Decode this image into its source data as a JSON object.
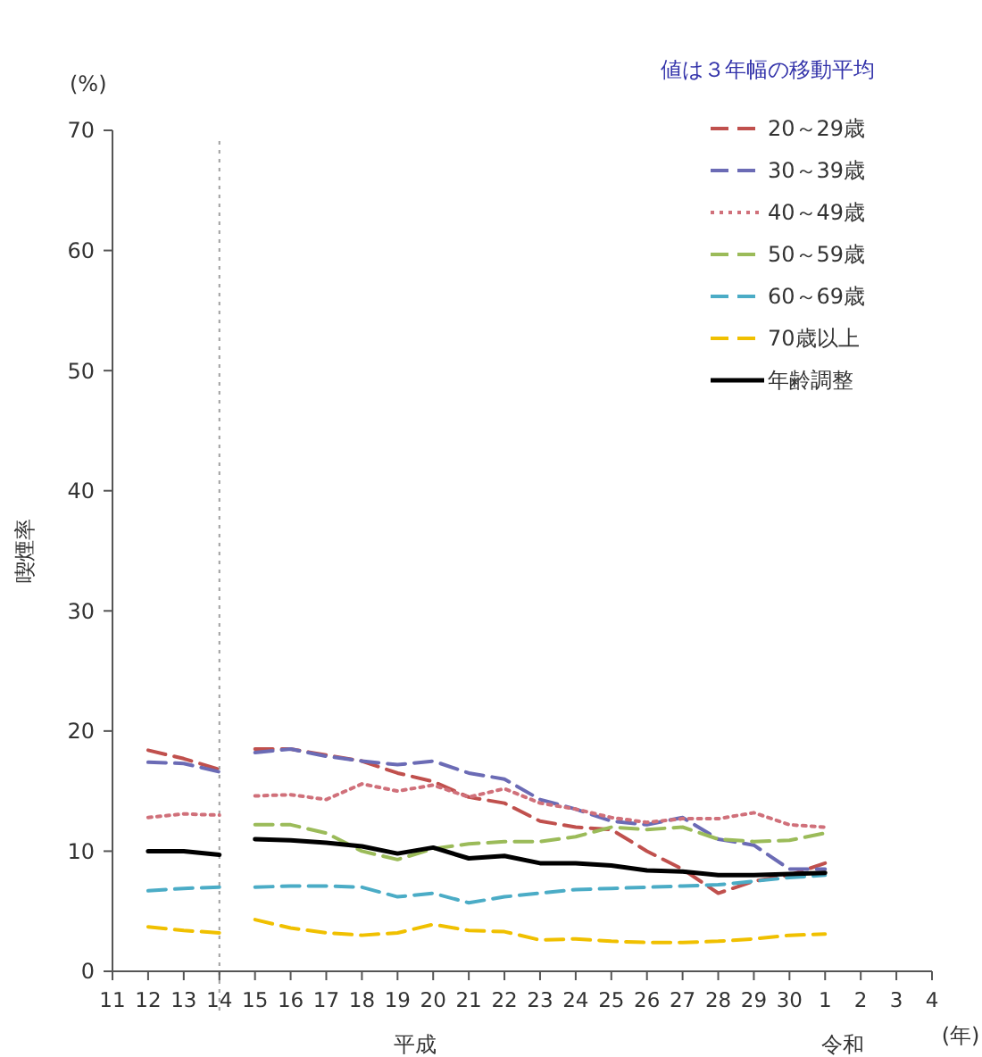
{
  "chart_data": {
    "type": "line",
    "subtitle": "値は３年幅の移動平均",
    "ylabel": "喫煙率",
    "xlabel": "(年)",
    "annotations": [
      "(%)",
      "平成",
      "令和"
    ],
    "categories": [
      "11",
      "12",
      "13",
      "14",
      "15",
      "16",
      "17",
      "18",
      "19",
      "20",
      "21",
      "22",
      "23",
      "24",
      "25",
      "26",
      "27",
      "28",
      "29",
      "30",
      "1",
      "2",
      "3",
      "4"
    ],
    "ylim": [
      0,
      70
    ],
    "yticks": [
      0,
      10,
      20,
      30,
      40,
      50,
      60,
      70
    ],
    "grid": false,
    "legend": "top right",
    "marker": "none",
    "ref_lines": [
      {
        "axis": "x",
        "value": "14",
        "color": "#a0a0a0",
        "line_style": "dotted"
      }
    ],
    "series": [
      {
        "name": "20～29歳",
        "color": "#c0504d",
        "line_style": "dashed",
        "values": [
          null,
          18.4,
          17.7,
          16.8,
          18.5,
          18.5,
          18,
          17.5,
          16.5,
          15.8,
          14.5,
          14,
          12.5,
          12,
          11.8,
          10,
          8.5,
          6.5,
          7.5,
          8,
          9,
          null,
          null,
          null
        ]
      },
      {
        "name": "30～39歳",
        "color": "#6b6bb5",
        "line_style": "dashed",
        "values": [
          null,
          17.4,
          17.3,
          16.6,
          18.2,
          18.5,
          17.9,
          17.5,
          17.2,
          17.5,
          16.5,
          16,
          14.3,
          13.5,
          12.5,
          12.2,
          12.8,
          11,
          10.5,
          8.5,
          8.5,
          null,
          null,
          null
        ]
      },
      {
        "name": "40～49歳",
        "color": "#d0707a",
        "line_style": "dotted",
        "values": [
          null,
          12.8,
          13.1,
          13,
          14.6,
          14.7,
          14.3,
          15.6,
          15,
          15.5,
          14.5,
          15.2,
          14,
          13.5,
          12.8,
          12.4,
          12.7,
          12.7,
          13.2,
          12.2,
          12,
          null,
          null,
          null
        ]
      },
      {
        "name": "50～59歳",
        "color": "#9bbb59",
        "line_style": "dashed",
        "values": [
          null,
          null,
          null,
          null,
          12.2,
          12.2,
          11.5,
          10,
          9.3,
          10.2,
          10.6,
          10.8,
          10.8,
          11.2,
          12,
          11.8,
          12,
          11,
          10.8,
          10.9,
          11.5,
          null,
          null,
          null
        ]
      },
      {
        "name": "60～69歳",
        "color": "#4bacc6",
        "line_style": "dashed",
        "values": [
          null,
          6.7,
          6.9,
          7,
          7,
          7.1,
          7.1,
          7,
          6.2,
          6.5,
          5.7,
          6.2,
          6.5,
          6.8,
          6.9,
          7,
          7.1,
          7.2,
          7.5,
          7.8,
          8,
          null,
          null,
          null
        ]
      },
      {
        "name": "70歳以上",
        "color": "#f0c000",
        "line_style": "dashed",
        "values": [
          null,
          3.7,
          3.4,
          3.2,
          4.3,
          3.6,
          3.2,
          3,
          3.2,
          3.9,
          3.4,
          3.3,
          2.6,
          2.7,
          2.5,
          2.4,
          2.4,
          2.5,
          2.7,
          3,
          3.1,
          null,
          null,
          null
        ]
      },
      {
        "name": "年齢調整",
        "color": "#000000",
        "line_style": "solid",
        "values": [
          null,
          10,
          10,
          9.7,
          11,
          10.9,
          10.7,
          10.4,
          9.8,
          10.3,
          9.4,
          9.6,
          9,
          9,
          8.8,
          8.4,
          8.3,
          8,
          8,
          8.1,
          8.2,
          null,
          null,
          null
        ]
      }
    ]
  }
}
